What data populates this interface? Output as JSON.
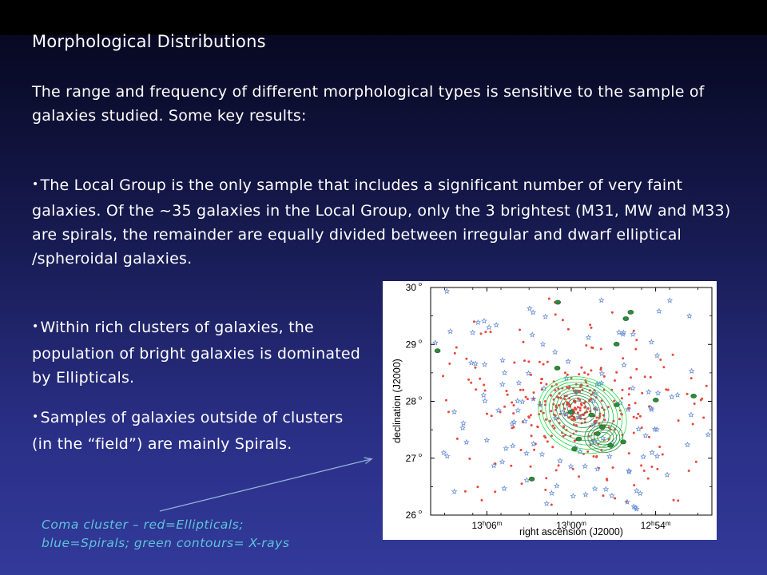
{
  "slide": {
    "title": "Morphological Distributions",
    "intro": "The range and frequency of different morphological types is sensitive to the sample of galaxies studied.  Some key results:",
    "bullet_symbol": "•",
    "bullets": [
      "The Local Group is the only sample that includes a significant number of very faint galaxies.  Of the ~35 galaxies in the Local Group, only the 3 brightest (M31, MW and M33) are spirals, the remainder are equally divided between irregular and dwarf elliptical /spheroidal galaxies.",
      "Within rich clusters of galaxies, the population of bright galaxies is dominated by Ellipticals.",
      "Samples of galaxies outside of clusters (in the “field”) are mainly Spirals."
    ],
    "caption_line1": "Coma cluster – red=Ellipticals;",
    "caption_line2": "blue=Spirals; green contours= X-rays"
  },
  "chart_data": {
    "type": "scatter",
    "title": "",
    "xlabel": "right ascension (J2000)",
    "ylabel": "declination (J2000)",
    "xlim": [
      "13h10m",
      "12h50m"
    ],
    "ylim": [
      26,
      30
    ],
    "x_ticks": [
      {
        "h": "13",
        "m": "06"
      },
      {
        "h": "13",
        "m": "00"
      },
      {
        "h": "12",
        "m": "54"
      }
    ],
    "y_ticks": [
      "26",
      "27",
      "28",
      "29",
      "30"
    ],
    "degree_symbol": "o",
    "series": [
      {
        "name": "Ellipticals",
        "color": "#e8473c",
        "marker": "dot"
      },
      {
        "name": "Spirals",
        "color": "#6a8fd6",
        "marker": "star"
      },
      {
        "name": "X-rays",
        "color": "#2e8a3a",
        "marker": "contour"
      }
    ],
    "xray_center": {
      "ra": "12h59.5m",
      "dec": 27.9
    }
  }
}
